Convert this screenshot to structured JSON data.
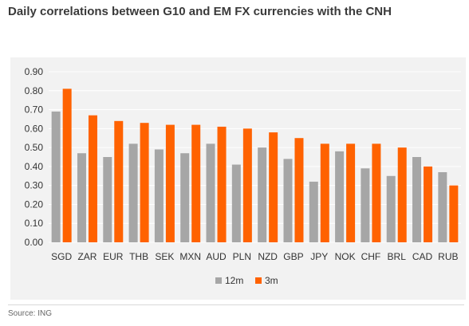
{
  "title": "Daily correlations between G10 and EM FX currencies with the CNH",
  "source": "Source: ING",
  "chart_data": {
    "type": "bar",
    "title": "",
    "xlabel": "",
    "ylabel": "",
    "ylim": [
      0,
      0.9
    ],
    "yticks": [
      "0.00",
      "0.10",
      "0.20",
      "0.30",
      "0.40",
      "0.50",
      "0.60",
      "0.70",
      "0.80",
      "0.90"
    ],
    "grid": true,
    "legend_position": "bottom",
    "categories": [
      "SGD",
      "ZAR",
      "EUR",
      "THB",
      "SEK",
      "MXN",
      "AUD",
      "PLN",
      "NZD",
      "GBP",
      "JPY",
      "NOK",
      "CHF",
      "BRL",
      "CAD",
      "RUB"
    ],
    "series": [
      {
        "name": "12m",
        "color": "#a6a6a6",
        "values": [
          0.69,
          0.47,
          0.45,
          0.52,
          0.49,
          0.47,
          0.52,
          0.41,
          0.5,
          0.44,
          0.32,
          0.48,
          0.39,
          0.35,
          0.45,
          0.37
        ]
      },
      {
        "name": "3m",
        "color": "#ff6200",
        "values": [
          0.81,
          0.67,
          0.64,
          0.63,
          0.62,
          0.62,
          0.61,
          0.6,
          0.58,
          0.55,
          0.52,
          0.52,
          0.52,
          0.5,
          0.4,
          0.3
        ]
      }
    ]
  }
}
